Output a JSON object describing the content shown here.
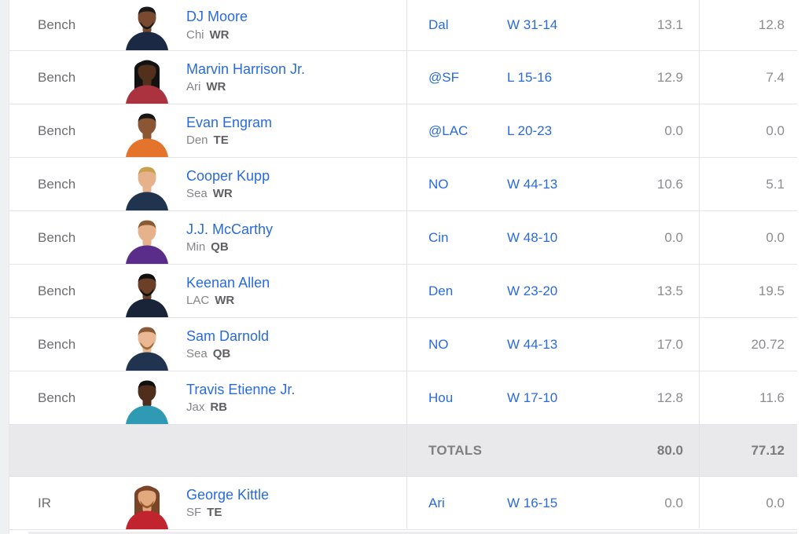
{
  "table": {
    "totals_label": "TOTALS"
  },
  "colors": {
    "link_blue": "#2a6bdb",
    "slot_text": "#6d6d71",
    "team_text": "#85858a",
    "position_text": "#5f5f64",
    "score_text": "#8c8c91",
    "row_border": "#e4e4e6",
    "column_divider": "#e3e3e5",
    "totals_background": "#e9e9eb",
    "left_gutter_background": "#eef0f1",
    "card_background": "#ffffff"
  },
  "rows": [
    {
      "type": "player",
      "slot": "Bench",
      "player": {
        "name": "DJ Moore",
        "team": "Chi",
        "pos": "WR"
      },
      "opp": "Dal",
      "result": "W 31-14",
      "score1": "13.1",
      "score2": "12.8",
      "avatar": {
        "jersey": "#1b2944",
        "skin": "#7a4a30",
        "hair": "#1a1a1a",
        "hair_long": false,
        "beard": "#1a1a1a"
      }
    },
    {
      "type": "player",
      "slot": "Bench",
      "player": {
        "name": "Marvin Harrison Jr.",
        "team": "Ari",
        "pos": "WR"
      },
      "opp": "@SF",
      "result": "L 15-16",
      "score1": "12.9",
      "score2": "7.4",
      "avatar": {
        "jersey": "#ab3340",
        "skin": "#53301c",
        "hair": "#121212",
        "hair_long": true,
        "beard": "none"
      }
    },
    {
      "type": "player",
      "slot": "Bench",
      "player": {
        "name": "Evan Engram",
        "team": "Den",
        "pos": "TE"
      },
      "opp": "@LAC",
      "result": "L 20-23",
      "score1": "0.0",
      "score2": "0.0",
      "avatar": {
        "jersey": "#e4742c",
        "skin": "#8a5634",
        "hair": "#161616",
        "hair_long": false,
        "beard": "none"
      }
    },
    {
      "type": "player",
      "slot": "Bench",
      "player": {
        "name": "Cooper Kupp",
        "team": "Sea",
        "pos": "WR"
      },
      "opp": "NO",
      "result": "W 44-13",
      "score1": "10.6",
      "score2": "5.1",
      "avatar": {
        "jersey": "#20334f",
        "skin": "#e6b28c",
        "hair": "#c9a050",
        "hair_long": false,
        "beard": "none"
      }
    },
    {
      "type": "player",
      "slot": "Bench",
      "player": {
        "name": "J.J. McCarthy",
        "team": "Min",
        "pos": "QB"
      },
      "opp": "Cin",
      "result": "W 48-10",
      "score1": "0.0",
      "score2": "0.0",
      "avatar": {
        "jersey": "#5a2d8b",
        "skin": "#e6b28c",
        "hair": "#8a5a30",
        "hair_long": false,
        "beard": "none"
      }
    },
    {
      "type": "player",
      "slot": "Bench",
      "player": {
        "name": "Keenan Allen",
        "team": "LAC",
        "pos": "WR"
      },
      "opp": "Den",
      "result": "W 23-20",
      "score1": "13.5",
      "score2": "19.5",
      "avatar": {
        "jersey": "#1a2438",
        "skin": "#6b4027",
        "hair": "#101010",
        "hair_long": false,
        "beard": "#101010"
      }
    },
    {
      "type": "player",
      "slot": "Bench",
      "player": {
        "name": "Sam Darnold",
        "team": "Sea",
        "pos": "QB"
      },
      "opp": "NO",
      "result": "W 44-13",
      "score1": "17.0",
      "score2": "20.72",
      "avatar": {
        "jersey": "#20334f",
        "skin": "#eab894",
        "hair": "#8a5a34",
        "hair_long": false,
        "beard": "#a06a3a"
      }
    },
    {
      "type": "player",
      "slot": "Bench",
      "player": {
        "name": "Travis Etienne Jr.",
        "team": "Jax",
        "pos": "RB"
      },
      "opp": "Hou",
      "result": "W 17-10",
      "score1": "12.8",
      "score2": "11.6",
      "avatar": {
        "jersey": "#2f9ab4",
        "skin": "#4f2e1b",
        "hair": "#101010",
        "hair_long": false,
        "beard": "none"
      }
    },
    {
      "type": "totals",
      "label": "TOTALS",
      "score1": "80.0",
      "score2": "77.12"
    },
    {
      "type": "player",
      "slot": "IR",
      "player": {
        "name": "George Kittle",
        "team": "SF",
        "pos": "TE"
      },
      "opp": "Ari",
      "result": "W 16-15",
      "score1": "0.0",
      "score2": "0.0",
      "avatar": {
        "jersey": "#c1242f",
        "skin": "#e2a87e",
        "hair": "#7a4526",
        "hair_long": true,
        "beard": "#9a5a2e"
      }
    }
  ]
}
